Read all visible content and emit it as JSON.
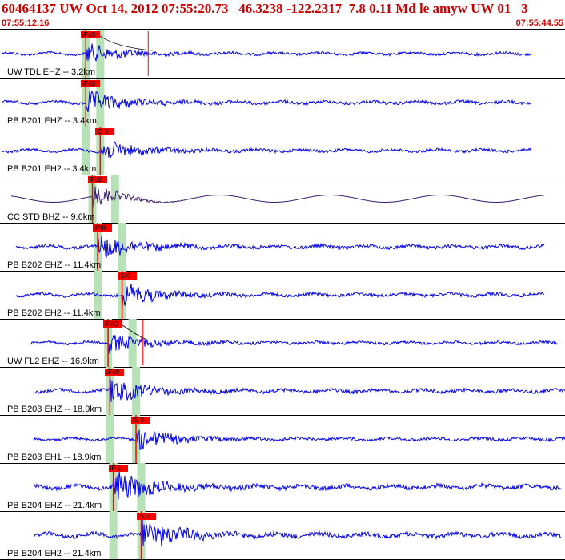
{
  "header": {
    "event_line": "60464137 UW Oct 14, 2012 07:55:20.73   46.3238 -122.2317  7.8 0.11 Md le amyw UW 01   3",
    "time_start": "07:55:12.16",
    "time_end": "07:55:44.55"
  },
  "colors": {
    "trace": "#0000ee",
    "trace_dark": "#3a1d6e",
    "pick": "#ff0000",
    "window": "#b7e2b7",
    "label": "#000000"
  },
  "traces": [
    {
      "label": "UW TDL EHZ -- 3.2km",
      "pick_label": "iPd0",
      "pick_time": 4.92,
      "windows": [
        4.92,
        5.75
      ],
      "amplitude": 0.55,
      "dark": false,
      "end_time": 30.5,
      "theoretical_time": 8.5
    },
    {
      "label": "PB B201 EHZ -- 3.4km",
      "pick_label": "iPd0",
      "pick_time": 4.92,
      "windows": [
        4.92,
        5.75
      ],
      "amplitude": 0.65,
      "dark": false,
      "end_time": 30.5
    },
    {
      "label": "PB B201 EH2 -- 3.4km",
      "pick_label": "iS 0",
      "pick_time": 5.75,
      "windows": [
        4.92,
        5.75
      ],
      "amplitude": 0.6,
      "dark": false,
      "end_time": 30.5
    },
    {
      "label": "CC STD BHZ -- 9.6km",
      "pick_label": "iPd0",
      "pick_time": 5.3,
      "windows": [
        5.3,
        6.6
      ],
      "amplitude": 0.75,
      "dark": true,
      "end_time": 31.2
    },
    {
      "label": "PB B202 EHZ -- 11.4km",
      "pick_label": "iPd0",
      "pick_time": 5.6,
      "windows": [
        5.6,
        7.0
      ],
      "amplitude": 0.7,
      "dark": false,
      "end_time": 31.2
    },
    {
      "label": "PB B202 EH2 -- 11.4km",
      "pick_label": "iS 0",
      "pick_time": 7.0,
      "windows": [
        5.6,
        7.0
      ],
      "amplitude": 0.65,
      "dark": false,
      "end_time": 31.2
    },
    {
      "label": "UW FL2 EHZ -- 16.9km",
      "pick_label": "iPd0",
      "pick_time": 6.2,
      "windows": [
        6.2,
        7.6
      ],
      "amplitude": 0.55,
      "dark": false,
      "end_time": 32.0,
      "theoretical_time": 8.2
    },
    {
      "label": "PB B203 EHZ -- 18.9km",
      "pick_label": "iPd0",
      "pick_time": 6.3,
      "windows": [
        6.3,
        7.8
      ],
      "amplitude": 0.7,
      "dark": false,
      "end_time": 32.5
    },
    {
      "label": "PB B203 EH1 -- 18.9km",
      "pick_label": "iS 0",
      "pick_time": 7.8,
      "windows": [
        6.3,
        7.8
      ],
      "amplitude": 0.6,
      "dark": false,
      "end_time": 32.5
    },
    {
      "label": "PB B204 EHZ -- 21.4km",
      "pick_label": "iP 1",
      "pick_time": 6.5,
      "windows": [
        6.5,
        8.1
      ],
      "amplitude": 0.9,
      "dark": false,
      "end_time": 32.2
    },
    {
      "label": "PB B204 EH2 -- 21.4km",
      "pick_label": "iS 0",
      "pick_time": 8.1,
      "windows": [
        6.5,
        8.1
      ],
      "amplitude": 0.9,
      "dark": false,
      "end_time": 32.2
    }
  ]
}
